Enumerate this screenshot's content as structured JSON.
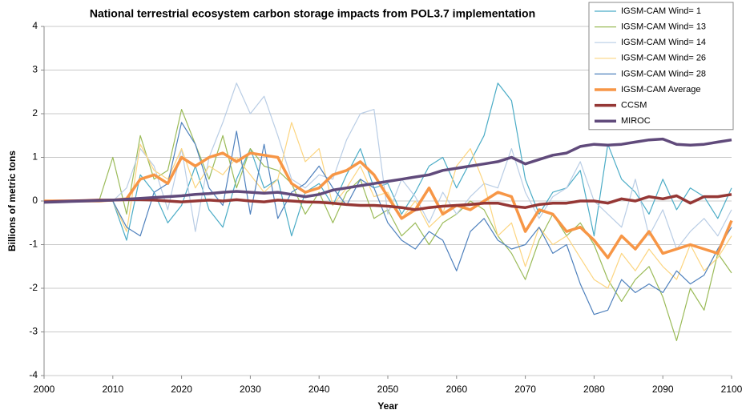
{
  "chart_data": {
    "type": "line",
    "title": "National terrestrial ecosystem carbon storage impacts from POL3.7 implementation",
    "x_label": "Year",
    "y_label": "Billions of metric tons",
    "x": [
      2000,
      2002,
      2004,
      2006,
      2008,
      2010,
      2012,
      2014,
      2016,
      2018,
      2020,
      2022,
      2024,
      2026,
      2028,
      2030,
      2032,
      2034,
      2036,
      2038,
      2040,
      2042,
      2044,
      2046,
      2048,
      2050,
      2052,
      2054,
      2056,
      2058,
      2060,
      2062,
      2064,
      2066,
      2068,
      2070,
      2072,
      2074,
      2076,
      2078,
      2080,
      2082,
      2084,
      2086,
      2088,
      2090,
      2092,
      2094,
      2096,
      2098,
      2100
    ],
    "xlim": [
      2000,
      2100
    ],
    "xticks": [
      2000,
      2010,
      2020,
      2030,
      2040,
      2050,
      2060,
      2070,
      2080,
      2090,
      2100
    ],
    "ylim": [
      -4,
      4
    ],
    "yticks": [
      -4,
      -3,
      -2,
      -1,
      0,
      1,
      2,
      3,
      4
    ],
    "grid": true,
    "legend": "top-right",
    "series": [
      {
        "name": "IGSM-CAM Wind= 1",
        "color": "#4bacc6",
        "width": 1.2,
        "values": [
          0,
          0,
          0,
          0,
          0,
          0,
          -0.9,
          0.6,
          0.2,
          -0.5,
          -0.1,
          0.8,
          -0.2,
          -0.6,
          0.5,
          1.2,
          0.3,
          0.5,
          -0.8,
          0.2,
          0.4,
          -0.1,
          0.6,
          1.2,
          0.3,
          0.4,
          -0.3,
          0.2,
          0.8,
          1.0,
          0.3,
          0.9,
          1.5,
          2.7,
          2.3,
          0.5,
          -0.3,
          0.2,
          0.3,
          0.7,
          -0.8,
          1.3,
          0.5,
          0.2,
          -0.3,
          0.5,
          -0.2,
          0.3,
          0.1,
          -0.4,
          0.3
        ]
      },
      {
        "name": "IGSM-CAM Wind= 13",
        "color": "#9bbb59",
        "width": 1.2,
        "values": [
          0,
          0,
          0,
          0,
          0,
          1.0,
          -0.3,
          1.5,
          0.5,
          0.7,
          2.1,
          1.3,
          0.5,
          1.5,
          0.3,
          1.2,
          0.8,
          0.7,
          0.4,
          -0.3,
          0.2,
          -0.5,
          0.2,
          0.5,
          -0.4,
          -0.2,
          -0.8,
          -0.5,
          -1.0,
          -0.5,
          -0.3,
          0.0,
          -0.2,
          -0.8,
          -1.2,
          -1.8,
          -0.9,
          -0.3,
          -0.8,
          -0.5,
          -1.0,
          -1.8,
          -2.3,
          -1.8,
          -1.5,
          -2.2,
          -3.2,
          -2.0,
          -2.5,
          -1.2,
          -1.65
        ]
      },
      {
        "name": "IGSM-CAM Wind= 14",
        "color": "#b9cde5",
        "width": 1.2,
        "values": [
          0,
          0,
          0,
          0,
          0,
          0,
          0.3,
          1.2,
          0.8,
          -0.2,
          1.2,
          -0.7,
          1.0,
          1.8,
          2.7,
          2.0,
          2.4,
          1.5,
          0.5,
          0.3,
          0.6,
          0.5,
          1.4,
          2.0,
          2.1,
          -0.3,
          0.5,
          0.1,
          -0.5,
          0.2,
          -0.3,
          0.1,
          0.4,
          0.3,
          1.2,
          0.2,
          -0.4,
          0.1,
          0.3,
          0.9,
          0.0,
          -0.3,
          -0.6,
          0.5,
          -0.8,
          -0.2,
          -1.1,
          -0.7,
          -0.4,
          -0.8,
          -0.2
        ]
      },
      {
        "name": "IGSM-CAM Wind= 26",
        "color": "#fcd580",
        "width": 1.2,
        "values": [
          0,
          0,
          0,
          0,
          0,
          0,
          -0.7,
          1.3,
          0.7,
          0.5,
          1.2,
          0.3,
          0.8,
          0.6,
          1.0,
          0.6,
          0.2,
          0.5,
          1.8,
          0.9,
          1.2,
          -0.1,
          0.3,
          0.8,
          0.1,
          0.2,
          -0.4,
          0.0,
          -0.6,
          -0.3,
          0.8,
          1.2,
          0.4,
          -0.8,
          -0.5,
          -1.5,
          -0.6,
          -1.0,
          -0.8,
          -1.3,
          -1.8,
          -2.0,
          -1.2,
          -1.6,
          -1.1,
          -1.5,
          -1.8,
          -1.0,
          -1.6,
          -1.3,
          -0.8
        ]
      },
      {
        "name": "IGSM-CAM Wind= 28",
        "color": "#4f81bd",
        "width": 1.2,
        "values": [
          0,
          0,
          0,
          0,
          0,
          0,
          -0.6,
          -0.8,
          0.2,
          0.4,
          1.8,
          1.3,
          0.3,
          -0.1,
          1.6,
          -0.3,
          1.3,
          -0.4,
          0.2,
          0.4,
          0.8,
          0.3,
          -0.1,
          0.5,
          0.3,
          -0.5,
          -0.9,
          -1.1,
          -0.7,
          -0.9,
          -1.6,
          -0.7,
          -0.4,
          -0.9,
          -1.1,
          -1.0,
          -0.6,
          -1.2,
          -1.0,
          -1.9,
          -2.6,
          -2.5,
          -1.8,
          -2.1,
          -1.9,
          -2.1,
          -1.6,
          -1.9,
          -1.7,
          -1.1,
          -0.6
        ]
      },
      {
        "name": "IGSM-CAM Average",
        "color": "#f79646",
        "width": 3.5,
        "values": [
          0,
          0,
          0,
          0,
          0,
          0.02,
          0.05,
          0.5,
          0.6,
          0.4,
          1.0,
          0.8,
          1.0,
          1.1,
          0.9,
          1.1,
          1.05,
          1.0,
          0.4,
          0.2,
          0.3,
          0.6,
          0.7,
          0.9,
          0.6,
          0.1,
          -0.4,
          -0.2,
          0.3,
          -0.3,
          -0.1,
          -0.2,
          0.0,
          0.2,
          0.1,
          -0.7,
          -0.2,
          -0.3,
          -0.7,
          -0.6,
          -0.9,
          -1.3,
          -0.8,
          -1.1,
          -0.7,
          -1.2,
          -1.1,
          -1.0,
          -1.1,
          -1.2,
          -0.45
        ]
      },
      {
        "name": "CCSM",
        "color": "#953735",
        "width": 3.5,
        "values": [
          -0.02,
          -0.01,
          0,
          0.01,
          0.02,
          0.02,
          0.03,
          0.03,
          0.02,
          0.0,
          -0.02,
          0.0,
          0.02,
          0.0,
          0.03,
          0.0,
          -0.02,
          0.02,
          0.0,
          -0.02,
          -0.03,
          -0.05,
          -0.08,
          -0.1,
          -0.1,
          -0.12,
          -0.15,
          -0.2,
          -0.15,
          -0.12,
          -0.1,
          -0.08,
          -0.05,
          -0.05,
          -0.12,
          -0.15,
          -0.08,
          -0.05,
          -0.05,
          0.0,
          0.0,
          -0.05,
          0.05,
          0.0,
          0.1,
          0.05,
          0.12,
          -0.05,
          0.1,
          0.1,
          0.15
        ]
      },
      {
        "name": "MIROC",
        "color": "#604a7b",
        "width": 3.5,
        "values": [
          -0.03,
          -0.02,
          -0.01,
          0.0,
          0.01,
          0.02,
          0.04,
          0.06,
          0.08,
          0.1,
          0.12,
          0.15,
          0.17,
          0.2,
          0.22,
          0.2,
          0.18,
          0.2,
          0.15,
          0.1,
          0.15,
          0.25,
          0.3,
          0.35,
          0.4,
          0.45,
          0.5,
          0.55,
          0.6,
          0.7,
          0.75,
          0.8,
          0.85,
          0.9,
          1.0,
          0.85,
          0.95,
          1.05,
          1.1,
          1.25,
          1.3,
          1.28,
          1.3,
          1.35,
          1.4,
          1.42,
          1.3,
          1.28,
          1.3,
          1.35,
          1.4
        ]
      }
    ]
  }
}
